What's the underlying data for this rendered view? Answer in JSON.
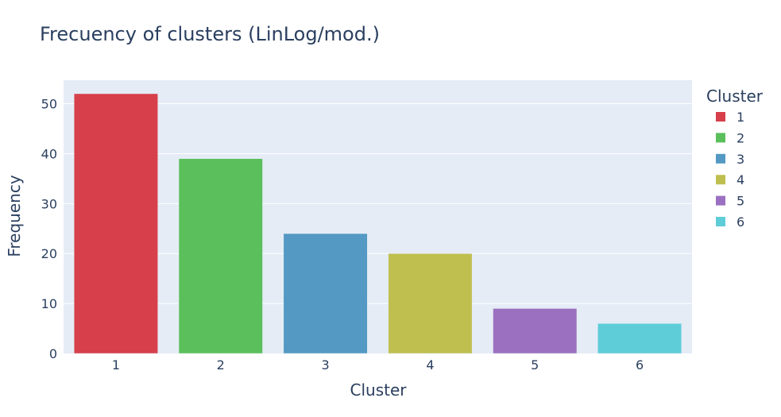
{
  "chart_data": {
    "type": "bar",
    "title": "Frecuency of clusters (LinLog/mod.)",
    "xlabel": "Cluster",
    "ylabel": "Frequency",
    "categories": [
      "1",
      "2",
      "3",
      "4",
      "5",
      "6"
    ],
    "values": [
      52,
      39,
      24,
      20,
      9,
      6
    ],
    "colors": [
      "#d73f4b",
      "#5bbf5b",
      "#5499c3",
      "#bfbf50",
      "#9b70c1",
      "#5ecdd8"
    ],
    "ylim": [
      0,
      54.7
    ],
    "yticks": [
      0,
      10,
      20,
      30,
      40,
      50
    ],
    "grid": true,
    "legend": {
      "title": "Cluster",
      "placement": "right",
      "entries": [
        "1",
        "2",
        "3",
        "4",
        "5",
        "6"
      ]
    },
    "plot_background": "#e5ecf6"
  }
}
